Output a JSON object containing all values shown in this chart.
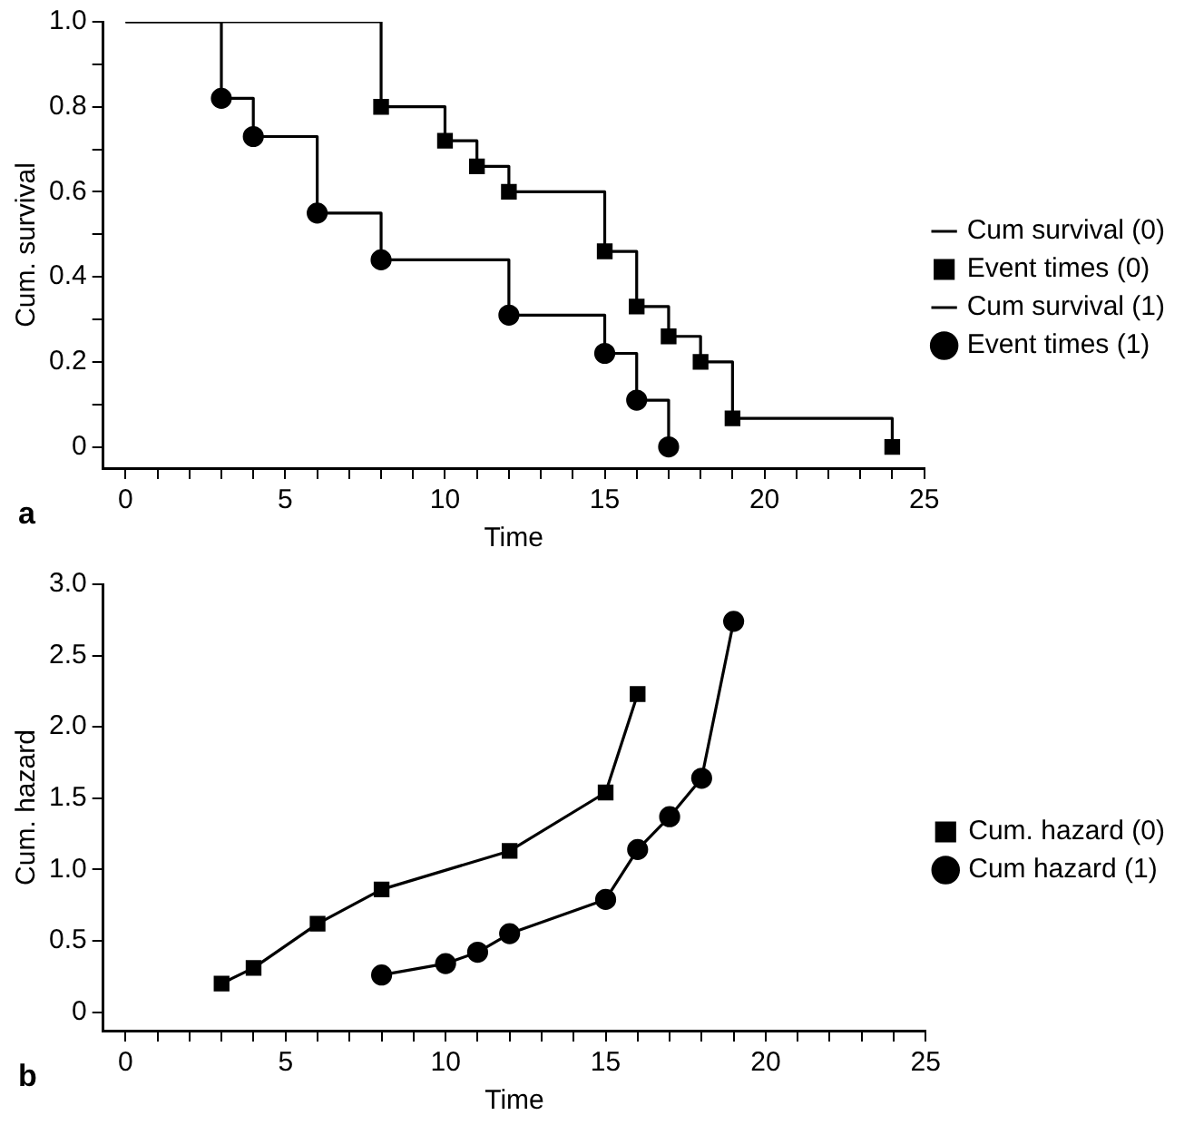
{
  "chart_data": [
    {
      "type": "step",
      "xlabel": "Time",
      "ylabel": "Cum. survival",
      "annotations": [
        "a"
      ],
      "legend": "right",
      "grid": false,
      "xlim": [
        -0.7,
        25
      ],
      "xticks": [
        0,
        {
          "value": 1,
          "label": null
        },
        {
          "value": 2,
          "label": null
        },
        {
          "value": 3,
          "label": null
        },
        {
          "value": 4,
          "label": null
        },
        5,
        {
          "value": 6,
          "label": null
        },
        {
          "value": 7,
          "label": null
        },
        {
          "value": 8,
          "label": null
        },
        {
          "value": 9,
          "label": null
        },
        10,
        {
          "value": 11,
          "label": null
        },
        {
          "value": 12,
          "label": null
        },
        {
          "value": 13,
          "label": null
        },
        {
          "value": 14,
          "label": null
        },
        15,
        {
          "value": 16,
          "label": null
        },
        {
          "value": 17,
          "label": null
        },
        {
          "value": 18,
          "label": null
        },
        {
          "value": 19,
          "label": null
        },
        20,
        {
          "value": 21,
          "label": null
        },
        {
          "value": 22,
          "label": null
        },
        {
          "value": 23,
          "label": null
        },
        {
          "value": 24,
          "label": null
        },
        25
      ],
      "ylim": [
        -0.05,
        1.0
      ],
      "yticks": [
        0,
        {
          "value": 0.1,
          "label": null
        },
        0.2,
        {
          "value": 0.3,
          "label": null
        },
        0.4,
        {
          "value": 0.5,
          "label": null
        },
        0.6,
        {
          "value": 0.7,
          "label": null
        },
        0.8,
        {
          "value": 0.9,
          "label": null
        },
        {
          "value": 1.0,
          "label": "1.0"
        }
      ],
      "series": [
        {
          "name": "Cum survival (0)",
          "marker": "none",
          "line_style": "solid",
          "color": "#000000",
          "x": [
            0,
            8,
            10,
            11,
            12,
            15,
            16,
            17,
            18,
            19,
            24
          ],
          "values": [
            1,
            0.8,
            0.72,
            0.66,
            0.6,
            0.46,
            0.33,
            0.26,
            0.2,
            0.067,
            0
          ]
        },
        {
          "name": "Event times (0)",
          "type": "scatter",
          "marker": "square",
          "color": "#000000",
          "x": [
            8,
            10,
            11,
            12,
            15,
            16,
            17,
            18,
            19,
            24
          ],
          "values": [
            0.8,
            0.72,
            0.66,
            0.6,
            0.46,
            0.33,
            0.26,
            0.2,
            0.067,
            0
          ]
        },
        {
          "name": "Cum survival (1)",
          "marker": "none",
          "line_style": "solid",
          "color": "#000000",
          "x": [
            0,
            3,
            4,
            6,
            8,
            12,
            15,
            16,
            17
          ],
          "values": [
            1,
            0.82,
            0.73,
            0.55,
            0.44,
            0.31,
            0.22,
            0.11,
            0
          ]
        },
        {
          "name": "Event times (1)",
          "type": "scatter",
          "marker": "circle",
          "color": "#000000",
          "x": [
            3,
            4,
            6,
            8,
            12,
            15,
            16,
            17
          ],
          "values": [
            0.82,
            0.73,
            0.55,
            0.44,
            0.31,
            0.22,
            0.11,
            0
          ]
        }
      ]
    },
    {
      "type": "line",
      "xlabel": "Time",
      "ylabel": "Cum. hazard",
      "annotations": [
        "b"
      ],
      "legend": "right",
      "grid": false,
      "xlim": [
        -0.7,
        25
      ],
      "xticks": [
        0,
        {
          "value": 1,
          "label": null
        },
        {
          "value": 2,
          "label": null
        },
        {
          "value": 3,
          "label": null
        },
        {
          "value": 4,
          "label": null
        },
        5,
        {
          "value": 6,
          "label": null
        },
        {
          "value": 7,
          "label": null
        },
        {
          "value": 8,
          "label": null
        },
        {
          "value": 9,
          "label": null
        },
        10,
        {
          "value": 11,
          "label": null
        },
        {
          "value": 12,
          "label": null
        },
        {
          "value": 13,
          "label": null
        },
        {
          "value": 14,
          "label": null
        },
        15,
        {
          "value": 16,
          "label": null
        },
        {
          "value": 17,
          "label": null
        },
        {
          "value": 18,
          "label": null
        },
        {
          "value": 19,
          "label": null
        },
        20,
        {
          "value": 21,
          "label": null
        },
        {
          "value": 22,
          "label": null
        },
        {
          "value": 23,
          "label": null
        },
        {
          "value": 24,
          "label": null
        },
        25
      ],
      "ylim": [
        -0.13,
        3.0
      ],
      "yticks": [
        0,
        0.5,
        {
          "value": 1.0,
          "label": "1.0"
        },
        1.5,
        {
          "value": 2.0,
          "label": "2.0"
        },
        2.5,
        {
          "value": 3.0,
          "label": "3.0"
        }
      ],
      "series": [
        {
          "name": "Cum. hazard (0)",
          "marker": "square",
          "line_style": "solid",
          "color": "#000000",
          "x": [
            3,
            4,
            6,
            8,
            12,
            15,
            16
          ],
          "values": [
            0.2,
            0.31,
            0.62,
            0.86,
            1.13,
            1.54,
            2.23
          ]
        },
        {
          "name": "Cum hazard (1)",
          "marker": "circle",
          "line_style": "solid",
          "color": "#000000",
          "x": [
            8,
            10,
            11,
            12,
            15,
            16,
            17,
            18,
            19
          ],
          "values": [
            0.26,
            0.34,
            0.42,
            0.55,
            0.79,
            1.14,
            1.37,
            1.64,
            2.74
          ]
        }
      ]
    }
  ]
}
